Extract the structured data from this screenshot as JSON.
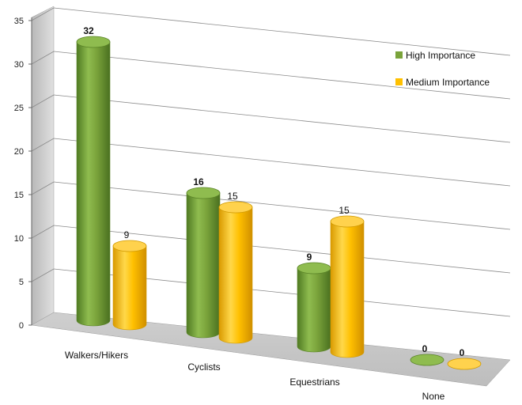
{
  "chart_data": {
    "type": "bar",
    "style": "3d-cylinder",
    "categories": [
      "Walkers/Hikers",
      "Cyclists",
      "Equestrians",
      "None"
    ],
    "series": [
      {
        "name": "High Importance",
        "values": [
          32,
          16,
          9,
          0
        ],
        "color": "#7aa33b"
      },
      {
        "name": "Medium Importance",
        "values": [
          9,
          15,
          15,
          0
        ],
        "color": "#ffc000"
      }
    ],
    "yticks": [
      0,
      5,
      10,
      15,
      20,
      25,
      30,
      35
    ],
    "ylim": [
      0,
      35
    ],
    "grid": true,
    "legend": "top-right"
  }
}
